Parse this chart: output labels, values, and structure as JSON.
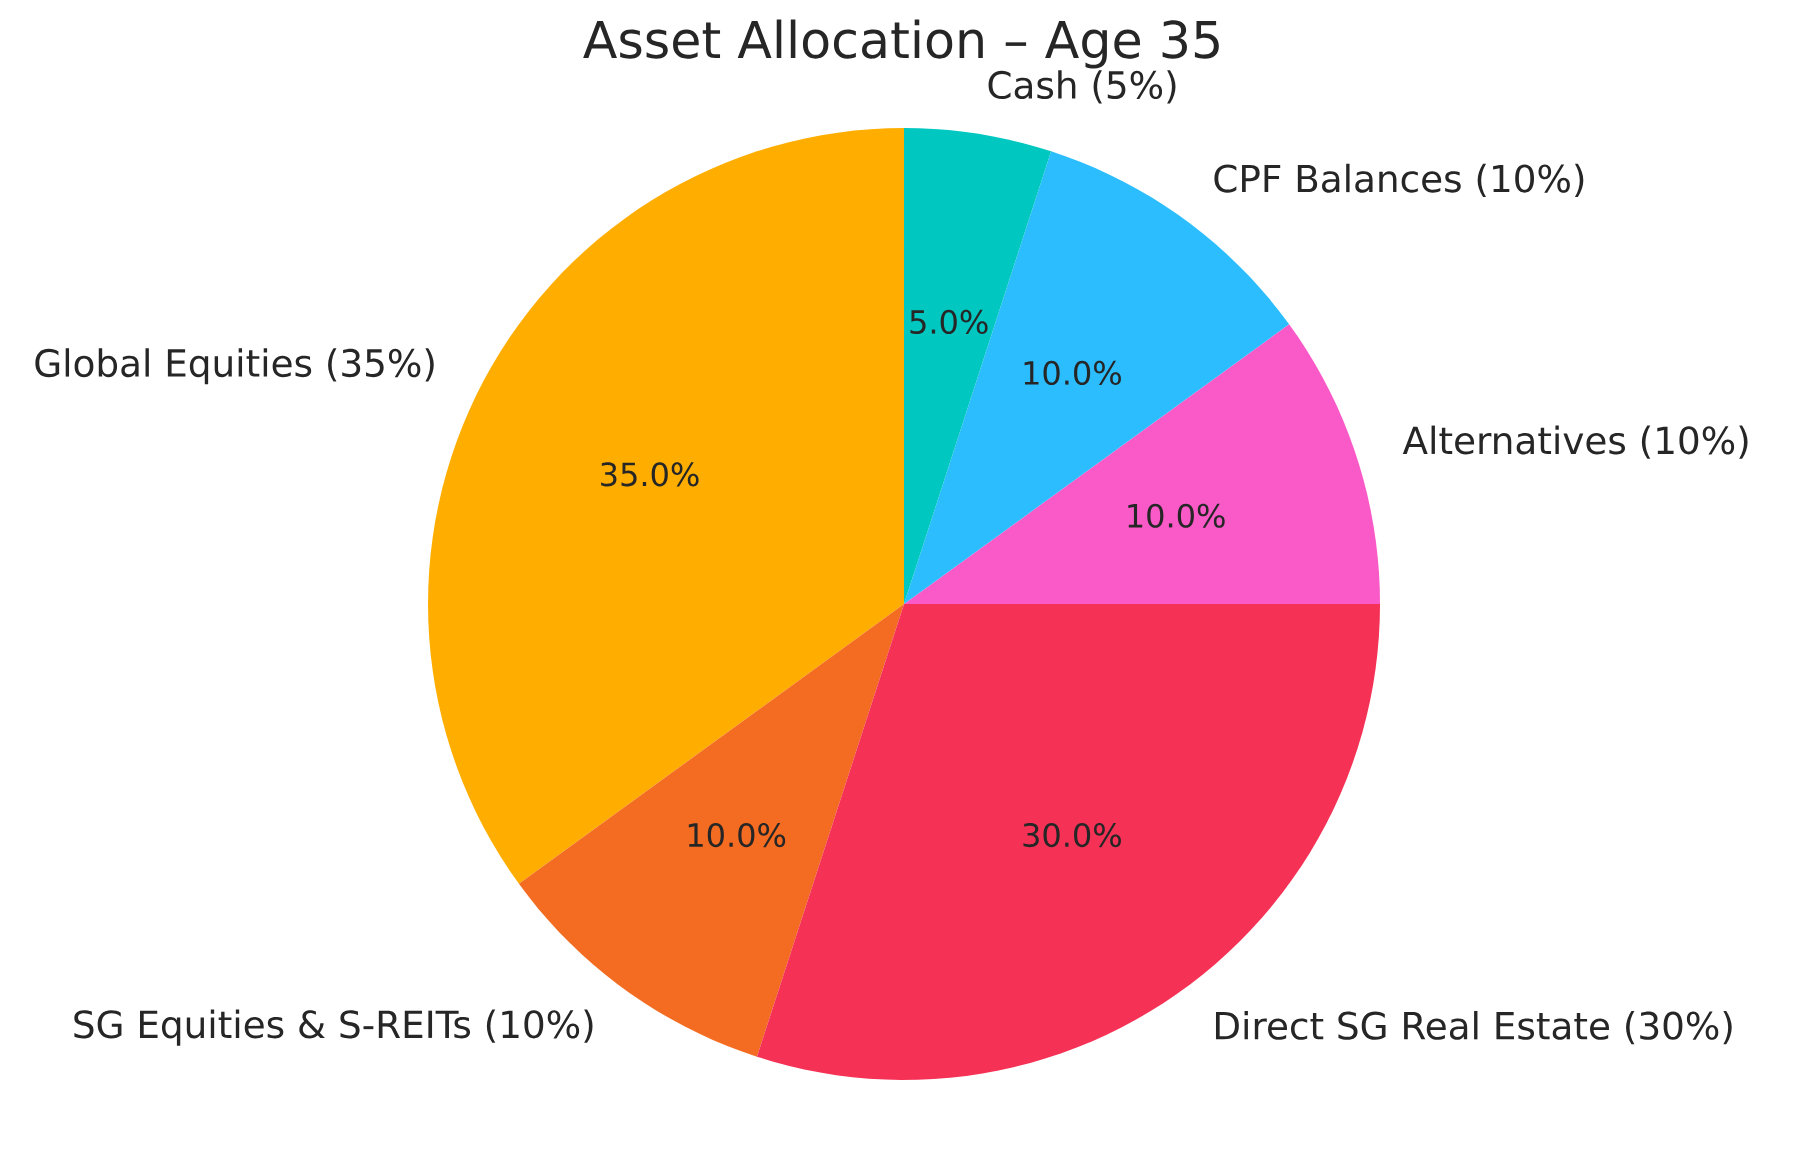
{
  "chart_data": {
    "type": "pie",
    "title": "Asset Allocation – Age 35",
    "categories": [
      "Global Equities (35%)",
      "SG Equities & S-REITs (10%)",
      "Direct SG Real Estate (30%)",
      "Alternatives (10%)",
      "CPF Balances (10%)",
      "Cash (5%)"
    ],
    "values": [
      35,
      10,
      30,
      10,
      10,
      5
    ],
    "value_labels": [
      "35.0%",
      "10.0%",
      "30.0%",
      "10.0%",
      "10.0%",
      "5.0%"
    ],
    "colors": [
      "#ffae00",
      "#f36c21",
      "#f53255",
      "#f95ac8",
      "#2bbdfd",
      "#00c8c0"
    ]
  }
}
